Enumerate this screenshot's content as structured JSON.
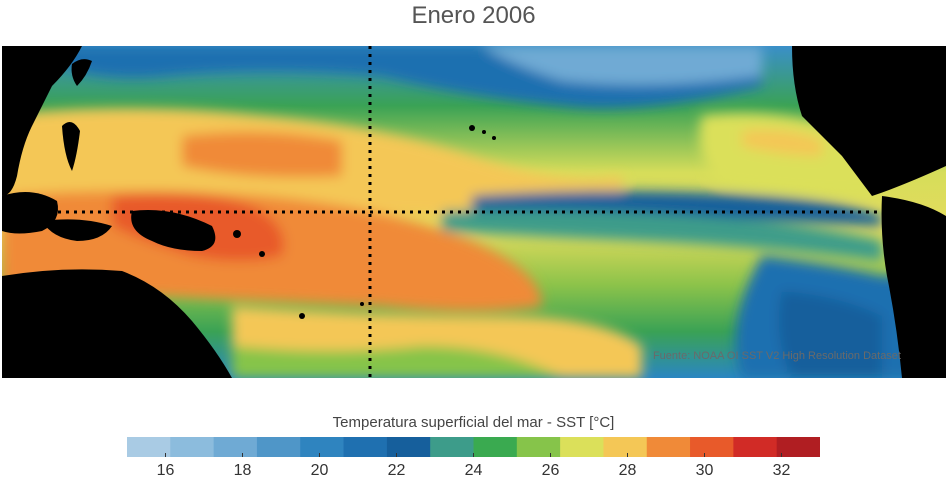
{
  "title": "Enero 2006",
  "credit": "Fuente: NOAA OI SST V2 High Resolution Dataset",
  "colorbar": {
    "label": "Temperatura superficial del mar - SST  [°C]",
    "min": 15,
    "max": 33,
    "colors": [
      "#a9cbe4",
      "#8cbcdd",
      "#6faad4",
      "#4f96c8",
      "#2f84bf",
      "#1f70b0",
      "#165f9c",
      "#3d9c8a",
      "#3aaa50",
      "#86c44a",
      "#dbe05a",
      "#f4c756",
      "#f08a38",
      "#e85a2a",
      "#d12b26",
      "#b01e22"
    ],
    "ticks": [
      16,
      18,
      20,
      22,
      24,
      26,
      28,
      30,
      32
    ]
  },
  "map": {
    "guide_lines": [
      "equator",
      "dateline"
    ]
  }
}
